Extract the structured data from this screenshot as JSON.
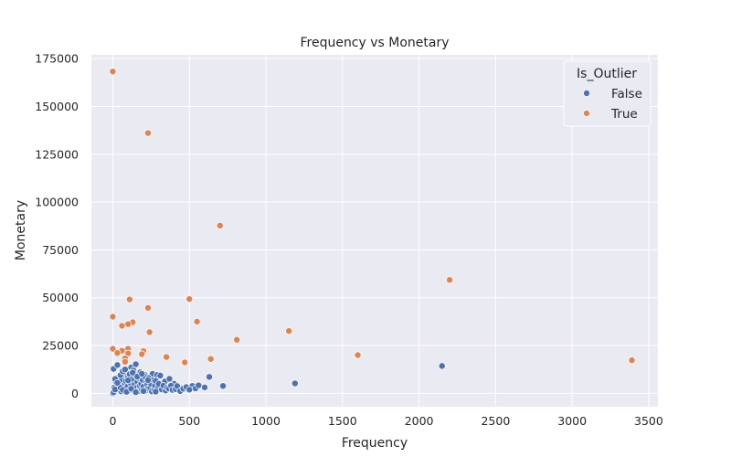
{
  "chart_data": {
    "type": "scatter",
    "title": "Frequency vs Monetary",
    "xlabel": "Frequency",
    "ylabel": "Monetary",
    "xlim": [
      -140,
      3560
    ],
    "ylim": [
      -7000,
      177000
    ],
    "xticks": [
      0,
      500,
      1000,
      1500,
      2000,
      2500,
      3000,
      3500
    ],
    "yticks": [
      0,
      25000,
      50000,
      75000,
      100000,
      125000,
      150000,
      175000
    ],
    "grid": true,
    "legend": {
      "title": "Is_Outlier",
      "position": "top-right"
    },
    "series": [
      {
        "name": "False",
        "color": "#4c72b0",
        "points": [
          [
            5,
            12800
          ],
          [
            30,
            14800
          ],
          [
            60,
            10500
          ],
          [
            90,
            9000
          ],
          [
            120,
            13500
          ],
          [
            150,
            15200
          ],
          [
            180,
            11000
          ],
          [
            210,
            9600
          ],
          [
            240,
            8200
          ],
          [
            260,
            10200
          ],
          [
            290,
            9600
          ],
          [
            310,
            9300
          ],
          [
            340,
            6200
          ],
          [
            370,
            7600
          ],
          [
            400,
            5000
          ],
          [
            430,
            3200
          ],
          [
            450,
            2800
          ],
          [
            520,
            3900
          ],
          [
            540,
            2600
          ],
          [
            560,
            4200
          ],
          [
            600,
            3100
          ],
          [
            630,
            8600
          ],
          [
            720,
            3900
          ],
          [
            1190,
            5200
          ],
          [
            2150,
            14300
          ],
          [
            0,
            0
          ],
          [
            10,
            3000
          ],
          [
            20,
            6000
          ],
          [
            25,
            8000
          ],
          [
            35,
            2000
          ],
          [
            40,
            5000
          ],
          [
            45,
            9000
          ],
          [
            55,
            1000
          ],
          [
            60,
            7000
          ],
          [
            70,
            4000
          ],
          [
            75,
            11000
          ],
          [
            80,
            2500
          ],
          [
            85,
            6500
          ],
          [
            95,
            3500
          ],
          [
            100,
            8500
          ],
          [
            105,
            1500
          ],
          [
            110,
            10000
          ],
          [
            115,
            5500
          ],
          [
            125,
            7500
          ],
          [
            130,
            2000
          ],
          [
            135,
            12000
          ],
          [
            140,
            4500
          ],
          [
            145,
            9500
          ],
          [
            155,
            3000
          ],
          [
            160,
            6000
          ],
          [
            165,
            1000
          ],
          [
            170,
            8000
          ],
          [
            175,
            4000
          ],
          [
            185,
            5000
          ],
          [
            190,
            2000
          ],
          [
            195,
            7000
          ],
          [
            200,
            3500
          ],
          [
            205,
            9000
          ],
          [
            215,
            1500
          ],
          [
            220,
            6000
          ],
          [
            225,
            4500
          ],
          [
            230,
            2500
          ],
          [
            235,
            8000
          ],
          [
            245,
            3000
          ],
          [
            250,
            5000
          ],
          [
            255,
            1000
          ],
          [
            265,
            7000
          ],
          [
            270,
            2000
          ],
          [
            275,
            4000
          ],
          [
            280,
            6500
          ],
          [
            285,
            1500
          ],
          [
            295,
            3000
          ],
          [
            300,
            5000
          ],
          [
            320,
            2000
          ],
          [
            330,
            4000
          ],
          [
            345,
            1500
          ],
          [
            355,
            3000
          ],
          [
            365,
            2500
          ],
          [
            380,
            4000
          ],
          [
            390,
            1800
          ],
          [
            410,
            2200
          ],
          [
            420,
            3800
          ],
          [
            440,
            1200
          ],
          [
            460,
            2400
          ],
          [
            480,
            3300
          ],
          [
            500,
            1900
          ],
          [
            5,
            500
          ],
          [
            15,
            2000
          ],
          [
            50,
            3000
          ],
          [
            65,
            1800
          ],
          [
            90,
            800
          ],
          [
            120,
            2400
          ],
          [
            150,
            600
          ],
          [
            200,
            1200
          ],
          [
            280,
            900
          ],
          [
            15,
            7500
          ],
          [
            30,
            5500
          ],
          [
            50,
            9500
          ],
          [
            65,
            11500
          ],
          [
            80,
            12500
          ],
          [
            100,
            6800
          ],
          [
            130,
            10800
          ],
          [
            160,
            8800
          ],
          [
            190,
            10200
          ],
          [
            230,
            6900
          ]
        ]
      },
      {
        "name": "True",
        "color": "#dd8452",
        "points": [
          [
            0,
            168300
          ],
          [
            230,
            136100
          ],
          [
            700,
            87700
          ],
          [
            2200,
            59300
          ],
          [
            110,
            49100
          ],
          [
            500,
            49300
          ],
          [
            230,
            44700
          ],
          [
            0,
            40100
          ],
          [
            550,
            37500
          ],
          [
            130,
            37200
          ],
          [
            100,
            36200
          ],
          [
            60,
            35300
          ],
          [
            240,
            32000
          ],
          [
            1150,
            32600
          ],
          [
            810,
            28000
          ],
          [
            0,
            23300
          ],
          [
            100,
            23300
          ],
          [
            60,
            22300
          ],
          [
            200,
            22100
          ],
          [
            30,
            21100
          ],
          [
            190,
            20500
          ],
          [
            100,
            20900
          ],
          [
            80,
            18300
          ],
          [
            1600,
            20000
          ],
          [
            350,
            19000
          ],
          [
            640,
            18000
          ],
          [
            3390,
            17300
          ],
          [
            470,
            16200
          ],
          [
            80,
            16500
          ]
        ]
      }
    ]
  }
}
